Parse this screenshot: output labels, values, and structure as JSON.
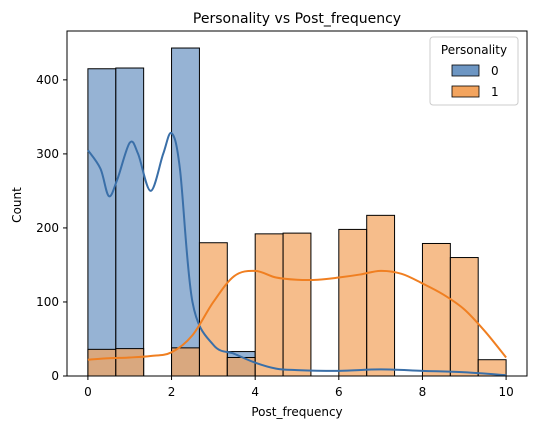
{
  "chart_data": {
    "type": "histogram",
    "title": "Personality vs Post_frequency",
    "xlabel": "Post_frequency",
    "ylabel": "Count",
    "xlim": [
      -0.5,
      10.5
    ],
    "ylim": [
      0,
      466
    ],
    "x_ticks": [
      0,
      2,
      4,
      6,
      8,
      10
    ],
    "y_ticks": [
      0,
      100,
      200,
      300,
      400
    ],
    "bin_edges": [
      0,
      0.667,
      1.333,
      2.0,
      2.667,
      3.333,
      4.0,
      4.667,
      5.333,
      6.0,
      6.667,
      7.333,
      8.0,
      8.667,
      9.333,
      10.0
    ],
    "legend": {
      "title": "Personality",
      "position": "upper right"
    },
    "grid": false,
    "series": [
      {
        "name": "0",
        "color": "#3a6fa8",
        "fill": "#6d96c3",
        "counts": [
          415,
          416,
          0,
          443,
          0,
          33,
          0,
          0,
          0,
          0,
          0,
          0,
          0,
          0,
          0
        ],
        "kde_x": [
          0,
          0.3,
          0.5,
          0.7,
          1.0,
          1.2,
          1.5,
          1.8,
          2.0,
          2.2,
          2.5,
          3.0,
          3.5,
          4.0,
          4.5,
          5.0,
          6.0,
          7.0,
          8.0,
          9.0,
          10.0
        ],
        "kde_y": [
          305,
          280,
          243,
          265,
          315,
          300,
          250,
          300,
          328,
          280,
          100,
          42,
          30,
          18,
          10,
          8,
          7,
          9,
          7,
          5,
          1
        ]
      },
      {
        "name": "1",
        "color": "#f07f21",
        "fill": "#f3a45e",
        "counts": [
          36,
          37,
          0,
          38,
          180,
          25,
          192,
          193,
          0,
          198,
          217,
          0,
          179,
          160,
          22
        ],
        "kde_x": [
          0,
          0.5,
          1.0,
          1.5,
          2.0,
          2.5,
          3.0,
          3.5,
          4.0,
          4.5,
          5.0,
          5.5,
          6.0,
          6.5,
          7.0,
          7.5,
          8.0,
          8.5,
          9.0,
          9.5,
          10.0
        ],
        "kde_y": [
          22,
          24,
          25,
          27,
          32,
          55,
          100,
          135,
          142,
          133,
          130,
          130,
          133,
          137,
          142,
          138,
          125,
          110,
          90,
          60,
          25
        ]
      }
    ]
  }
}
